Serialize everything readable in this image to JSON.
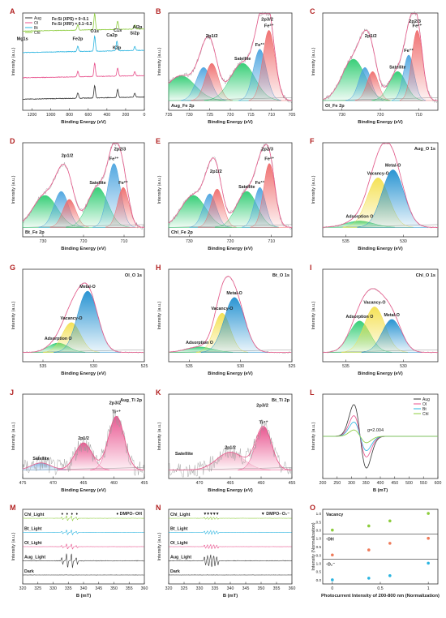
{
  "chart_data": [
    {
      "panel": "A",
      "type": "line",
      "xlabel": "Binding Energy (eV)",
      "ylabel": "Intensity (a.u.)",
      "xlim": [
        1300,
        0
      ],
      "xticks": [
        1200,
        1000,
        800,
        600,
        400,
        200,
        0
      ],
      "legend": {
        "position": "top-left",
        "items": [
          "Aug",
          "Ol",
          "Bt",
          "Chl"
        ]
      },
      "notes": [
        "Fe:Si (XPS) = 0~0.1",
        "Fe:Si (XRF) = 0.1~0.3"
      ],
      "annotations": [
        {
          "text": "Mg1s",
          "x": 1303
        },
        {
          "text": "Fe2p",
          "x": 711
        },
        {
          "text": "O1s",
          "x": 531
        },
        {
          "text": "Ca2p",
          "x": 347
        },
        {
          "text": "C1s",
          "x": 285
        },
        {
          "text": "K2p",
          "x": 293
        },
        {
          "text": "Si2p",
          "x": 102
        },
        {
          "text": "Al2p",
          "x": 74
        }
      ],
      "series": [
        {
          "name": "Aug",
          "color": "#333333",
          "peaks": [
            [
              711,
              0.2
            ],
            [
              531,
              0.45
            ],
            [
              285,
              0.3
            ],
            [
              102,
              0.15
            ]
          ]
        },
        {
          "name": "Ol",
          "color": "#e8508c",
          "peaks": [
            [
              711,
              0.2
            ],
            [
              531,
              0.5
            ],
            [
              285,
              0.3
            ],
            [
              102,
              0.15
            ]
          ]
        },
        {
          "name": "Bt",
          "color": "#2ab4e0",
          "peaks": [
            [
              711,
              0.2
            ],
            [
              531,
              0.55
            ],
            [
              293,
              0.35
            ],
            [
              102,
              0.15
            ]
          ]
        },
        {
          "name": "Chl",
          "color": "#8ccc3c",
          "peaks": [
            [
              711,
              0.2
            ],
            [
              531,
              0.6
            ],
            [
              285,
              0.3
            ],
            [
              102,
              0.15
            ]
          ]
        }
      ]
    },
    {
      "panel": "B",
      "type": "line",
      "xlabel": "Binding Energy (eV)",
      "ylabel": "Intensity (a.u.)",
      "xlim": [
        735,
        705
      ],
      "xticks": [
        735,
        730,
        725,
        720,
        715,
        710,
        705
      ],
      "label": "Aug_Fe 2p",
      "components": [
        {
          "label": "",
          "center": 732.0,
          "width": 3.5,
          "height": 0.3,
          "color": "#2ecc71"
        },
        {
          "label": "",
          "center": 726.5,
          "width": 1.8,
          "height": 0.4,
          "color": "#4aa3df"
        },
        {
          "label": "",
          "center": 724.5,
          "width": 1.6,
          "height": 0.45,
          "color": "#ef6b6b"
        },
        {
          "label": "Satellite",
          "center": 717.0,
          "width": 3.0,
          "height": 0.45,
          "color": "#2ecc71"
        },
        {
          "label": "Fe³⁺",
          "center": 712.8,
          "width": 1.6,
          "height": 0.62,
          "color": "#4aa3df"
        },
        {
          "label": "Fe²⁺",
          "center": 710.6,
          "width": 1.5,
          "height": 0.85,
          "color": "#ef6b6b"
        }
      ],
      "annotations": [
        "2p1/2",
        "2p3/2",
        "Satellite",
        "Fe³⁺",
        "Fe²⁺"
      ]
    },
    {
      "panel": "C",
      "type": "line",
      "xlabel": "Binding Energy (eV)",
      "ylabel": "Intensity (a.u.)",
      "xlim": [
        735,
        705
      ],
      "xticks": [
        730,
        720,
        710
      ],
      "label": "Ol_Fe 2p",
      "components": [
        {
          "label": "",
          "center": 727.0,
          "width": 3.0,
          "height": 0.5,
          "color": "#2ecc71"
        },
        {
          "label": "",
          "center": 724.0,
          "width": 1.6,
          "height": 0.4,
          "color": "#4aa3df"
        },
        {
          "label": "",
          "center": 722.0,
          "width": 1.5,
          "height": 0.35,
          "color": "#ef6b6b"
        },
        {
          "label": "Satellite",
          "center": 715.5,
          "width": 2.2,
          "height": 0.35,
          "color": "#2ecc71"
        },
        {
          "label": "Fe³⁺",
          "center": 712.6,
          "width": 1.4,
          "height": 0.55,
          "color": "#4aa3df"
        },
        {
          "label": "Fe²⁺",
          "center": 710.4,
          "width": 1.4,
          "height": 0.85,
          "color": "#ef6b6b"
        }
      ],
      "annotations": [
        "2p1/2",
        "2p2/3",
        "Satellite",
        "Fe³⁺",
        "Fe²⁺"
      ]
    },
    {
      "panel": "D",
      "type": "line",
      "xlabel": "Binding Energy (eV)",
      "ylabel": "Intensity (a.u.)",
      "xlim": [
        735,
        705
      ],
      "xticks": [
        730,
        720,
        710
      ],
      "label": "Bt_Fe 2p",
      "components": [
        {
          "label": "",
          "center": 729.5,
          "width": 3.0,
          "height": 0.4,
          "color": "#2ecc71"
        },
        {
          "label": "",
          "center": 725.5,
          "width": 1.8,
          "height": 0.45,
          "color": "#4aa3df"
        },
        {
          "label": "",
          "center": 723.5,
          "width": 1.6,
          "height": 0.35,
          "color": "#ef6b6b"
        },
        {
          "label": "Satellite",
          "center": 716.5,
          "width": 2.5,
          "height": 0.5,
          "color": "#2ecc71"
        },
        {
          "label": "Fe³⁺",
          "center": 712.5,
          "width": 1.6,
          "height": 0.8,
          "color": "#4aa3df"
        },
        {
          "label": "Fe²⁺",
          "center": 710.2,
          "width": 1.4,
          "height": 0.5,
          "color": "#ef6b6b"
        }
      ],
      "annotations": [
        "2p1/2",
        "2p2/3",
        "Satellite",
        "Fe³⁺",
        "Fe²⁺"
      ]
    },
    {
      "panel": "E",
      "type": "line",
      "xlabel": "Binding Energy (eV)",
      "ylabel": "Intensity (a.u.)",
      "xlim": [
        735,
        705
      ],
      "xticks": [
        730,
        720,
        710
      ],
      "label": "Chl_Fe 2p",
      "components": [
        {
          "label": "",
          "center": 729.0,
          "width": 3.0,
          "height": 0.4,
          "color": "#2ecc71"
        },
        {
          "label": "",
          "center": 725.0,
          "width": 1.6,
          "height": 0.42,
          "color": "#4aa3df"
        },
        {
          "label": "",
          "center": 723.2,
          "width": 1.5,
          "height": 0.48,
          "color": "#ef6b6b"
        },
        {
          "label": "Satellite",
          "center": 716.0,
          "width": 2.5,
          "height": 0.45,
          "color": "#2ecc71"
        },
        {
          "label": "Fe³⁺",
          "center": 712.8,
          "width": 1.4,
          "height": 0.5,
          "color": "#4aa3df"
        },
        {
          "label": "Fe²⁺",
          "center": 710.5,
          "width": 1.4,
          "height": 0.8,
          "color": "#ef6b6b"
        }
      ],
      "annotations": [
        "2p1/2",
        "2p2/3",
        "Satellite",
        "Fe³⁺",
        "Fe²⁺"
      ]
    },
    {
      "panel": "F",
      "type": "line",
      "xlabel": "Binding Energy (eV)",
      "ylabel": "Intensity (a.u.)",
      "xlim": [
        537,
        527
      ],
      "xticks": [
        535,
        530
      ],
      "label": "Aug_O 1s",
      "components": [
        {
          "label": "Adsorption O",
          "center": 533.8,
          "width": 1.2,
          "height": 0.08,
          "color": "#2ecc71"
        },
        {
          "label": "Vacancy-O",
          "center": 532.2,
          "width": 0.95,
          "height": 0.62,
          "color": "#f4e04d"
        },
        {
          "label": "Metal-O",
          "center": 530.9,
          "width": 0.95,
          "height": 0.72,
          "color": "#1f8fd0"
        }
      ]
    },
    {
      "panel": "G",
      "type": "line",
      "xlabel": "Binding Energy (eV)",
      "ylabel": "Intensity (a.u.)",
      "xlim": [
        537,
        525
      ],
      "xticks": [
        535,
        530,
        525
      ],
      "label": "Ol_O 1s",
      "components": [
        {
          "label": "Adsorption O",
          "center": 533.5,
          "width": 1.0,
          "height": 0.12,
          "color": "#2ecc71"
        },
        {
          "label": "Vacancy-O",
          "center": 532.2,
          "width": 0.9,
          "height": 0.38,
          "color": "#f4e04d"
        },
        {
          "label": "Metal-O",
          "center": 530.6,
          "width": 1.0,
          "height": 0.78,
          "color": "#1f8fd0"
        }
      ]
    },
    {
      "panel": "H",
      "type": "line",
      "xlabel": "Binding Energy (eV)",
      "ylabel": "Intensity (a.u.)",
      "xlim": [
        537,
        525
      ],
      "xticks": [
        535,
        530,
        525
      ],
      "label": "Bt_O 1s",
      "components": [
        {
          "label": "Adsorption O",
          "center": 534.0,
          "width": 1.3,
          "height": 0.07,
          "color": "#2ecc71"
        },
        {
          "label": "Vacancy-O",
          "center": 531.8,
          "width": 0.8,
          "height": 0.5,
          "color": "#f4e04d"
        },
        {
          "label": "Metal-O",
          "center": 530.6,
          "width": 1.0,
          "height": 0.7,
          "color": "#1f8fd0"
        }
      ]
    },
    {
      "panel": "I",
      "type": "line",
      "xlabel": "Binding Energy (eV)",
      "ylabel": "Intensity (a.u.)",
      "xlim": [
        537,
        527
      ],
      "xticks": [
        535,
        530
      ],
      "label": "Chl_O 1s",
      "components": [
        {
          "label": "Adsorption O",
          "center": 533.8,
          "width": 0.9,
          "height": 0.4,
          "color": "#2ecc71"
        },
        {
          "label": "Vacancy-O",
          "center": 532.5,
          "width": 0.9,
          "height": 0.58,
          "color": "#f4e04d"
        },
        {
          "label": "Metal-O",
          "center": 531.0,
          "width": 0.85,
          "height": 0.42,
          "color": "#1f8fd0"
        }
      ]
    },
    {
      "panel": "J",
      "type": "line",
      "xlabel": "Binding Energy (eV)",
      "ylabel": "Intensity (a.u.)",
      "xlim": [
        475,
        455
      ],
      "xticks": [
        475,
        470,
        465,
        460,
        455
      ],
      "label": "Aug_Ti 2p",
      "components": [
        {
          "label": "Satellite",
          "center": 472.0,
          "width": 1.6,
          "height": 0.1,
          "color": "#7fb3e6"
        },
        {
          "label": "2p1/2",
          "center": 465.0,
          "width": 1.4,
          "height": 0.38,
          "color": "#e8508c"
        },
        {
          "label": "Ti⁴⁺",
          "center": 459.6,
          "width": 1.3,
          "height": 0.75,
          "color": "#e8508c"
        }
      ],
      "annotations": [
        "Satellite",
        "2p1/2",
        "2p3/2",
        "Ti⁴⁺"
      ]
    },
    {
      "panel": "K",
      "type": "line",
      "xlabel": "Binding Energy (eV)",
      "ylabel": "Intensity (a.u.)",
      "xlim": [
        475,
        455
      ],
      "xticks": [
        470,
        465,
        460,
        455
      ],
      "label": "Bt_Ti 2p",
      "components": [
        {
          "label": "2p1/2",
          "center": 465.0,
          "width": 2.2,
          "height": 0.25,
          "color": "#f2a7c0"
        },
        {
          "label": "Ti⁴⁺",
          "center": 459.6,
          "width": 1.3,
          "height": 0.6,
          "color": "#e8508c"
        }
      ],
      "annotations": [
        "Satellite",
        "2p1/2",
        "2p3/2",
        "Ti⁴⁺"
      ]
    },
    {
      "panel": "L",
      "type": "line",
      "xlabel": "B (mT)",
      "ylabel": "Intensity (a.u.)",
      "xlim": [
        200,
        600
      ],
      "xticks": [
        200,
        250,
        300,
        350,
        400,
        450,
        500,
        550,
        600
      ],
      "legend": {
        "position": "top-right",
        "items": [
          "Aug",
          "Ol",
          "Bt",
          "Chl"
        ]
      },
      "annotations": [
        "g=2.004"
      ],
      "series": [
        {
          "name": "Aug",
          "color": "#333333",
          "amplitude": 1.0
        },
        {
          "name": "Ol",
          "color": "#e8508c",
          "amplitude": 0.65
        },
        {
          "name": "Bt",
          "color": "#2ab4e0",
          "amplitude": 0.45
        },
        {
          "name": "Chl",
          "color": "#8ccc3c",
          "amplitude": 0.2
        }
      ]
    },
    {
      "panel": "M",
      "type": "line",
      "xlabel": "B (mT)",
      "ylabel": "Intensity (a.u.)",
      "xlim": [
        320,
        360
      ],
      "xticks": [
        320,
        325,
        330,
        335,
        340,
        345,
        350,
        355,
        360
      ],
      "legend": {
        "position": "top-right",
        "items": [
          "DMPO-·OH"
        ]
      },
      "series": [
        {
          "name": "Chl_Light",
          "color": "#8ccc3c",
          "amplitude": 0.9
        },
        {
          "name": "Bt_Light",
          "color": "#2ab4e0",
          "amplitude": 0.9
        },
        {
          "name": "Ol_Light",
          "color": "#e8508c",
          "amplitude": 0.9
        },
        {
          "name": "Aug_Light",
          "color": "#333333",
          "amplitude": 1.0
        },
        {
          "name": "Dark",
          "color": "#333333",
          "amplitude": 0.05
        }
      ]
    },
    {
      "panel": "N",
      "type": "line",
      "xlabel": "B (mT)",
      "ylabel": "Intensity (a.u.)",
      "xlim": [
        320,
        360
      ],
      "xticks": [
        320,
        325,
        330,
        335,
        340,
        345,
        350,
        355,
        360
      ],
      "legend": {
        "position": "top-right",
        "items": [
          "DMPO-·O₂⁻"
        ]
      },
      "series": [
        {
          "name": "Chl_Light",
          "color": "#8ccc3c",
          "amplitude": 0.5
        },
        {
          "name": "Bt_Light",
          "color": "#2ab4e0",
          "amplitude": 0.8
        },
        {
          "name": "Ol_Light",
          "color": "#e8508c",
          "amplitude": 0.9
        },
        {
          "name": "Aug_Light",
          "color": "#333333",
          "amplitude": 1.0
        },
        {
          "name": "Dark",
          "color": "#333333",
          "amplitude": 0.05
        }
      ]
    },
    {
      "panel": "O",
      "type": "scatter",
      "xlabel": "Photocurrent Intensity of 200-800 nm (Normalization)",
      "ylabel": "Intensity (Normalization)",
      "xlim": [
        -0.1,
        1.1
      ],
      "xticks": [
        0.0,
        0.5,
        1.0
      ],
      "ylim": [
        -0.1,
        1.1
      ],
      "yticks": [
        0.0,
        0.5,
        1.0
      ],
      "series": [
        {
          "name": "Vacancy",
          "color": "#8ccc3c",
          "x": [
            0.0,
            0.38,
            0.6,
            1.0
          ],
          "y": [
            0.0,
            0.25,
            0.55,
            1.0
          ]
        },
        {
          "name": "·OH",
          "color": "#ef7b5a",
          "x": [
            0.0,
            0.38,
            0.6,
            1.0
          ],
          "y": [
            0.0,
            0.3,
            0.7,
            1.0
          ]
        },
        {
          "name": "·O₂⁻",
          "color": "#2ab4e0",
          "x": [
            0.0,
            0.38,
            0.6,
            1.0
          ],
          "y": [
            0.0,
            0.1,
            0.25,
            1.0
          ]
        }
      ]
    }
  ]
}
